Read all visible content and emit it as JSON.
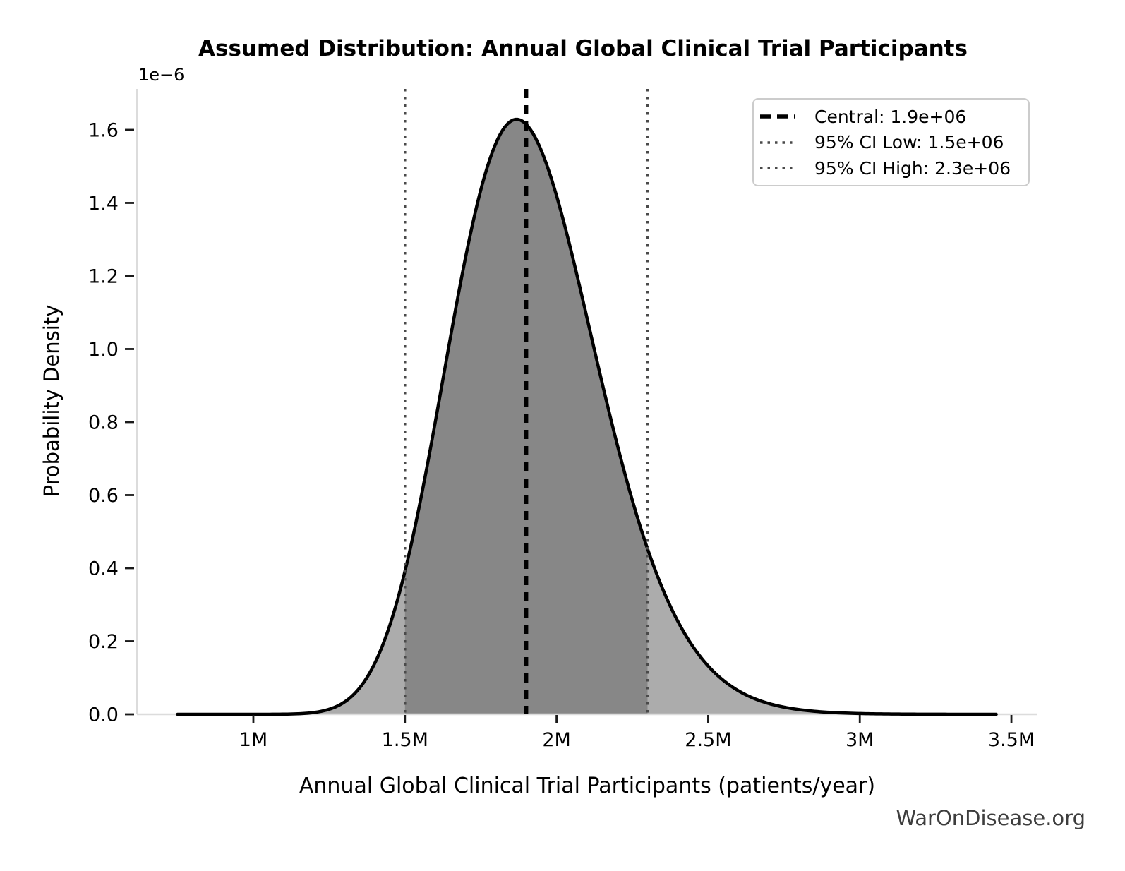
{
  "watermark": {
    "text": "WarOnDisease.org"
  },
  "chart_data": {
    "type": "area",
    "title": "Assumed Distribution: Annual Global Clinical Trial Participants",
    "xlabel": "Annual Global Clinical Trial Participants (patients/year)",
    "ylabel": "Probability Density",
    "y_offset_label": "1e−6",
    "grid": false,
    "xlim": [
      616000,
      3586000
    ],
    "ylim_e6": [
      0,
      1.712
    ],
    "x_ticks": [
      {
        "value": 1000000,
        "label": "1M"
      },
      {
        "value": 1500000,
        "label": "1.5M"
      },
      {
        "value": 2000000,
        "label": "2M"
      },
      {
        "value": 2500000,
        "label": "2.5M"
      },
      {
        "value": 3000000,
        "label": "3M"
      },
      {
        "value": 3500000,
        "label": "3.5M"
      }
    ],
    "y_ticks_e6": [
      {
        "value": 0.0,
        "label": "0.0"
      },
      {
        "value": 0.2,
        "label": "0.2"
      },
      {
        "value": 0.4,
        "label": "0.4"
      },
      {
        "value": 0.6,
        "label": "0.6"
      },
      {
        "value": 0.8,
        "label": "0.8"
      },
      {
        "value": 1.0,
        "label": "1.0"
      },
      {
        "value": 1.2,
        "label": "1.2"
      },
      {
        "value": 1.4,
        "label": "1.4"
      },
      {
        "value": 1.6,
        "label": "1.6"
      }
    ],
    "distribution": {
      "family": "lognormal",
      "central": 1900000,
      "ci_low": 1500000,
      "ci_high": 2300000,
      "sigma": 0.13,
      "x_min": 750000,
      "x_max": 3450000,
      "peak_density_e6": 1.63
    },
    "legend": {
      "position": "upper right",
      "entries": [
        {
          "label": "Central: 1.9e+06",
          "style": "dashed",
          "color": "#000000",
          "value": 1900000
        },
        {
          "label": "95% CI Low: 1.5e+06",
          "style": "dotted",
          "color": "#4a4a4a",
          "value": 1500000
        },
        {
          "label": "95% CI High: 2.3e+06",
          "style": "dotted",
          "color": "#4a4a4a",
          "value": 2300000
        }
      ]
    },
    "colors": {
      "curve": "#000000",
      "fill_inner": "#878787",
      "fill_outer": "#acacac",
      "central_line": "#000000",
      "ci_line": "#4a4a4a",
      "spine": "#dcdcdc",
      "tick": "#1a1a1a",
      "text": "#000000",
      "watermark": "#3d3d3d",
      "legend_border": "#cccccc"
    }
  }
}
